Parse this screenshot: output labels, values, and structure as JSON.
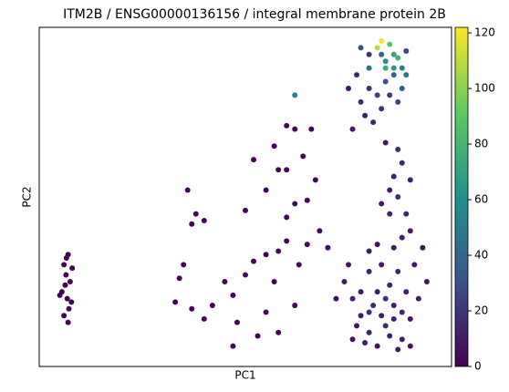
{
  "chart_data": {
    "type": "scatter",
    "title": "ITM2B / ENSG00000136156 / integral membrane protein 2B",
    "x_label": "PC1",
    "y_label": "PC2",
    "colormap": "viridis",
    "xlim": [
      0,
      100
    ],
    "ylim": [
      0,
      100
    ],
    "colorbar_lim": [
      0,
      122
    ],
    "colorbar_ticks": [
      0,
      20,
      40,
      60,
      80,
      100,
      120
    ],
    "x": [
      6,
      7,
      6.5,
      7.5,
      5.5,
      6.8,
      7.2,
      6,
      7,
      5,
      8,
      6.3,
      7.8,
      6.6,
      36,
      38,
      37,
      40,
      35,
      34,
      33,
      37,
      40,
      42,
      45,
      47,
      50,
      52,
      48,
      53,
      47,
      55,
      58,
      60,
      57,
      62,
      55,
      58,
      63,
      65,
      60,
      62,
      50,
      52,
      55,
      57,
      60,
      62,
      64,
      66,
      60,
      67,
      65,
      68,
      70,
      58,
      74,
      76,
      78,
      80,
      82,
      84,
      86,
      88,
      90,
      85,
      87,
      89,
      91,
      83,
      80,
      78,
      81,
      83,
      85,
      87,
      79,
      77,
      75,
      92,
      93,
      94,
      90,
      88,
      86,
      82,
      80,
      84,
      86,
      88,
      82,
      80,
      90,
      76,
      72,
      85,
      87,
      86,
      88,
      84,
      87,
      85,
      89,
      83,
      90,
      78,
      80,
      82,
      84,
      86,
      85,
      83,
      87,
      81,
      79,
      76,
      88,
      84,
      86,
      83,
      82,
      85,
      87,
      88,
      80,
      77,
      80,
      86,
      89,
      84,
      83,
      62,
      78,
      89,
      75
    ],
    "y": [
      30,
      33,
      27,
      25,
      22,
      20,
      17,
      15,
      13,
      21,
      29,
      24,
      19,
      32,
      52,
      45,
      42,
      43,
      30,
      26,
      19,
      17,
      14,
      18,
      25,
      21,
      27,
      31,
      13,
      9,
      6,
      33,
      34,
      37,
      25,
      18,
      16,
      10,
      30,
      36,
      44,
      48,
      46,
      61,
      52,
      65,
      58,
      70,
      62,
      70,
      71,
      55,
      49,
      40,
      35,
      58,
      25,
      20,
      15,
      10,
      6,
      12,
      18,
      8,
      14,
      24,
      28,
      22,
      30,
      30,
      28,
      22,
      18,
      15,
      9,
      5,
      7,
      12,
      30,
      20,
      35,
      25,
      40,
      38,
      35,
      36,
      34,
      20,
      14,
      16,
      22,
      16,
      6,
      8,
      20,
      45,
      50,
      56,
      60,
      66,
      64,
      52,
      45,
      48,
      55,
      78,
      82,
      80,
      84,
      86,
      80,
      76,
      78,
      72,
      74,
      70,
      82,
      90,
      92,
      96,
      94,
      95,
      91,
      88,
      88,
      86,
      92,
      88,
      86,
      88,
      92,
      80,
      94,
      93,
      82
    ],
    "color_values": [
      2,
      2,
      1,
      3,
      2,
      1,
      2,
      1,
      2,
      1,
      2,
      1,
      1,
      2,
      2,
      2,
      3,
      2,
      2,
      2,
      1,
      2,
      2,
      3,
      2,
      2,
      3,
      2,
      2,
      1,
      2,
      2,
      3,
      2,
      2,
      2,
      2,
      2,
      4,
      5,
      2,
      3,
      2,
      2,
      2,
      2,
      3,
      2,
      2,
      2,
      2,
      3,
      2,
      4,
      5,
      2,
      8,
      12,
      10,
      14,
      8,
      15,
      10,
      12,
      9,
      14,
      16,
      12,
      11,
      10,
      13,
      9,
      16,
      11,
      13,
      10,
      9,
      8,
      7,
      11,
      6,
      8,
      10,
      12,
      9,
      8,
      11,
      18,
      13,
      14,
      10,
      15,
      9,
      7,
      6,
      15,
      18,
      12,
      14,
      10,
      20,
      11,
      16,
      9,
      13,
      15,
      20,
      25,
      30,
      40,
      22,
      18,
      26,
      14,
      12,
      10,
      35,
      60,
      70,
      120,
      110,
      90,
      80,
      55,
      45,
      15,
      20,
      65,
      50,
      75,
      40,
      55,
      30,
      25,
      8
    ]
  }
}
